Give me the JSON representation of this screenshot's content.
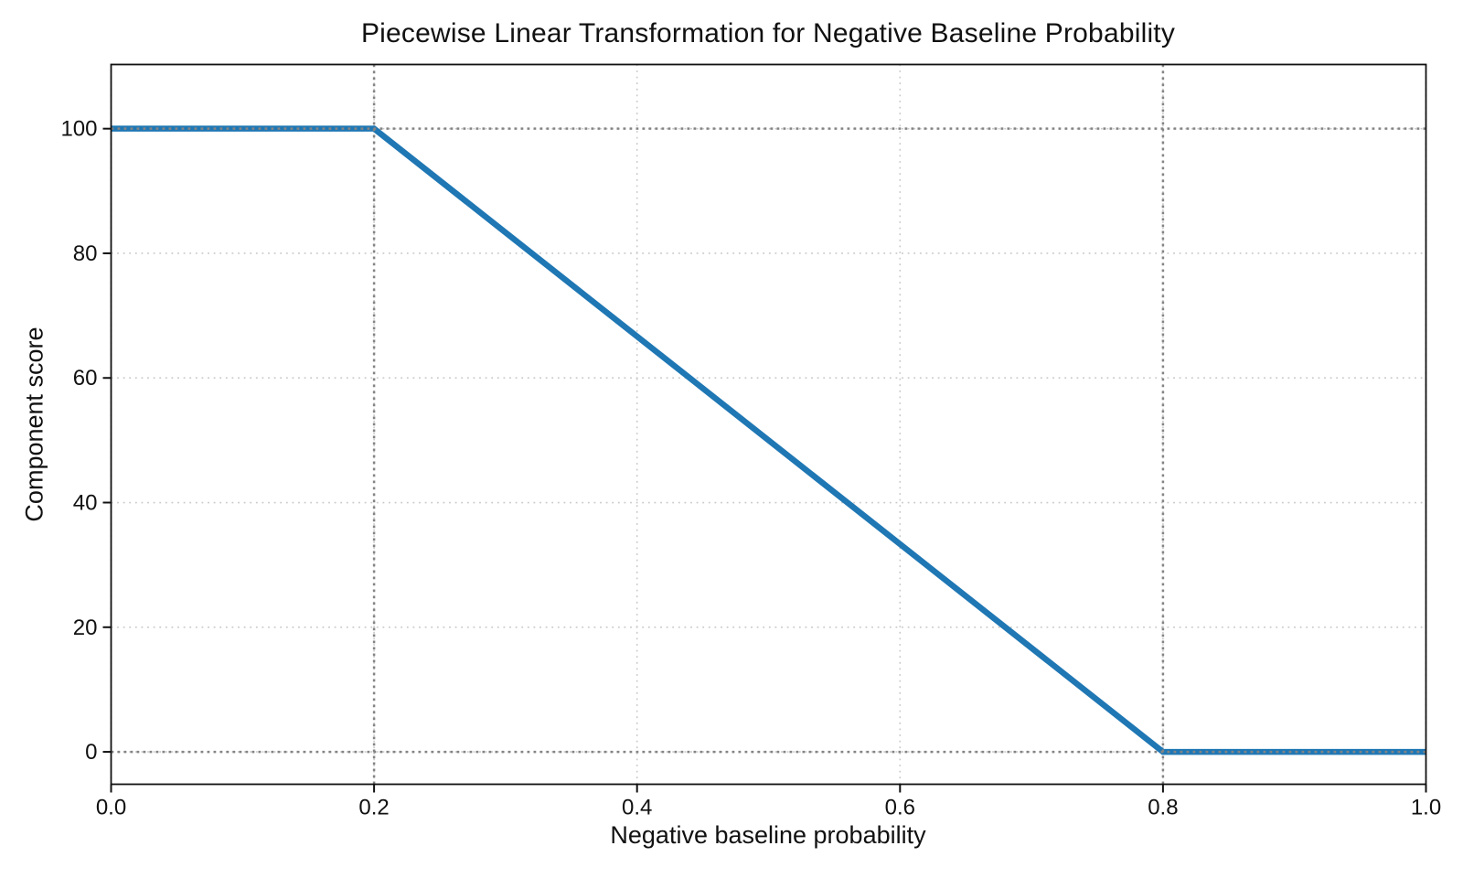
{
  "figure": {
    "background_color": "#ffffff",
    "text_color": "#111111"
  },
  "chart_data": {
    "type": "line",
    "title": "Piecewise Linear Transformation for Negative Baseline Probability",
    "xlabel": "Negative baseline probability",
    "ylabel": "Component score",
    "xlim": [
      0.0,
      1.0
    ],
    "ylim": [
      -5.2,
      110.3
    ],
    "legend_position": "none",
    "series": [
      {
        "color": "#1f77b4",
        "line_width": 6.5,
        "x": [
          0.0,
          0.2,
          0.8,
          1.0
        ],
        "y": [
          100,
          100,
          0,
          0
        ]
      }
    ],
    "x_ticks": {
      "values": [
        0.0,
        0.2,
        0.4,
        0.6,
        0.8,
        1.0
      ],
      "labels": [
        "0.0",
        "0.2",
        "0.4",
        "0.6",
        "0.8",
        "1.0"
      ]
    },
    "y_ticks": {
      "values": [
        0,
        20,
        40,
        60,
        80,
        100
      ],
      "labels": [
        "0",
        "20",
        "40",
        "60",
        "80",
        "100"
      ]
    },
    "grid": {
      "visible": true,
      "style": "dotted",
      "color": "#c9c9c9"
    },
    "reference_lines": {
      "style": "dotted",
      "color": "#848484",
      "vertical_x": [
        0.2,
        0.8
      ],
      "horizontal_y": [
        0,
        100
      ]
    }
  }
}
